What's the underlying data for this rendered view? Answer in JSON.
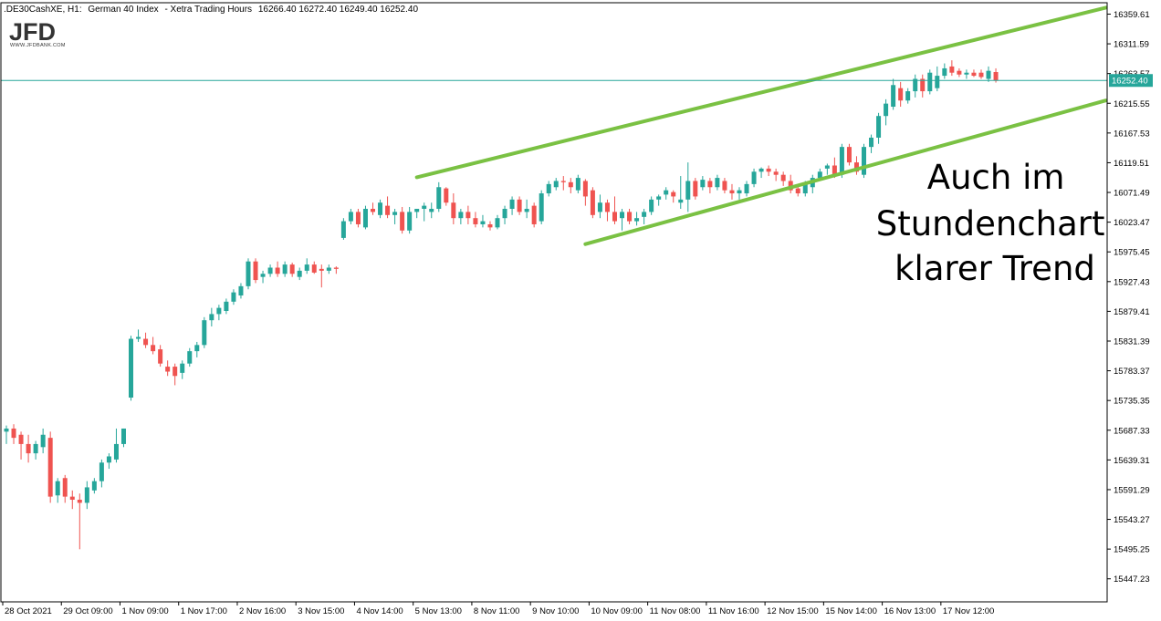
{
  "header": {
    "symbol": ".DE30CashXE, H1:",
    "description": "German 40 Index",
    "session": "- Xetra Trading Hours",
    "ohlc": "16266.40 16272.40 16249.40 16252.40"
  },
  "logo": {
    "mark": "JFD",
    "subtitle": "WWW.JFDBANK.COM"
  },
  "annotation": [
    "Auch im",
    "Stundenchart",
    "klarer Trend"
  ],
  "colors": {
    "bull": "#26a69a",
    "bear": "#ef5350",
    "trendline": "#7ac143",
    "price_line": "#26a69a",
    "axis": "#000000"
  },
  "chart_data": {
    "type": "candlestick",
    "title": "",
    "xlabel": "",
    "ylabel": "",
    "ylim": [
      15410,
      16378
    ],
    "y_ticks": [
      "16359.61",
      "16311.59",
      "16263.57",
      "16215.55",
      "16167.53",
      "16119.51",
      "16071.49",
      "16023.47",
      "15975.45",
      "15927.43",
      "15879.41",
      "15831.39",
      "15783.37",
      "15735.35",
      "15687.33",
      "15639.31",
      "15591.29",
      "15543.27",
      "15495.25",
      "15447.23"
    ],
    "x_ticks": [
      {
        "label": "28 Oct 2021",
        "bar": 0
      },
      {
        "label": "29 Oct 09:00",
        "bar": 8
      },
      {
        "label": "1 Nov 09:00",
        "bar": 16
      },
      {
        "label": "1 Nov 17:00",
        "bar": 24
      },
      {
        "label": "2 Nov 16:00",
        "bar": 32
      },
      {
        "label": "3 Nov 15:00",
        "bar": 40
      },
      {
        "label": "4 Nov 14:00",
        "bar": 48
      },
      {
        "label": "5 Nov 13:00",
        "bar": 56
      },
      {
        "label": "8 Nov 11:00",
        "bar": 64
      },
      {
        "label": "9 Nov 10:00",
        "bar": 72
      },
      {
        "label": "10 Nov 09:00",
        "bar": 80
      },
      {
        "label": "11 Nov 08:00",
        "bar": 88
      },
      {
        "label": "11 Nov 16:00",
        "bar": 96
      },
      {
        "label": "12 Nov 15:00",
        "bar": 104
      },
      {
        "label": "15 Nov 14:00",
        "bar": 112
      },
      {
        "label": "16 Nov 13:00",
        "bar": 120
      },
      {
        "label": "17 Nov 12:00",
        "bar": 128
      }
    ],
    "current_price": "16252.40",
    "candles": [
      {
        "o": 15685,
        "h": 15695,
        "l": 15665,
        "c": 15690
      },
      {
        "o": 15690,
        "h": 15697,
        "l": 15665,
        "c": 15675
      },
      {
        "o": 15680,
        "h": 15685,
        "l": 15640,
        "c": 15665
      },
      {
        "o": 15665,
        "h": 15680,
        "l": 15635,
        "c": 15650
      },
      {
        "o": 15650,
        "h": 15670,
        "l": 15640,
        "c": 15665
      },
      {
        "o": 15660,
        "h": 15690,
        "l": 15650,
        "c": 15680
      },
      {
        "o": 15675,
        "h": 15685,
        "l": 15570,
        "c": 15580
      },
      {
        "o": 15582,
        "h": 15610,
        "l": 15570,
        "c": 15605
      },
      {
        "o": 15610,
        "h": 15615,
        "l": 15570,
        "c": 15580
      },
      {
        "o": 15580,
        "h": 15590,
        "l": 15560,
        "c": 15575
      },
      {
        "o": 15575,
        "h": 15585,
        "l": 15495,
        "c": 15570
      },
      {
        "o": 15570,
        "h": 15605,
        "l": 15560,
        "c": 15595
      },
      {
        "o": 15590,
        "h": 15610,
        "l": 15585,
        "c": 15605
      },
      {
        "o": 15605,
        "h": 15640,
        "l": 15595,
        "c": 15635
      },
      {
        "o": 15635,
        "h": 15650,
        "l": 15625,
        "c": 15645
      },
      {
        "o": 15640,
        "h": 15690,
        "l": 15635,
        "c": 15665
      },
      {
        "o": 15665,
        "h": 15690,
        "l": 15660,
        "c": 15690
      },
      {
        "o": 15740,
        "h": 15840,
        "l": 15735,
        "c": 15835
      },
      {
        "o": 15835,
        "h": 15850,
        "l": 15830,
        "c": 15838
      },
      {
        "o": 15835,
        "h": 15845,
        "l": 15820,
        "c": 15825
      },
      {
        "o": 15825,
        "h": 15838,
        "l": 15810,
        "c": 15815
      },
      {
        "o": 15818,
        "h": 15825,
        "l": 15790,
        "c": 15795
      },
      {
        "o": 15790,
        "h": 15800,
        "l": 15775,
        "c": 15782
      },
      {
        "o": 15790,
        "h": 15795,
        "l": 15760,
        "c": 15775
      },
      {
        "o": 15780,
        "h": 15800,
        "l": 15770,
        "c": 15795
      },
      {
        "o": 15795,
        "h": 15820,
        "l": 15790,
        "c": 15815
      },
      {
        "o": 15815,
        "h": 15830,
        "l": 15805,
        "c": 15825
      },
      {
        "o": 15825,
        "h": 15870,
        "l": 15820,
        "c": 15865
      },
      {
        "o": 15865,
        "h": 15885,
        "l": 15855,
        "c": 15875
      },
      {
        "o": 15875,
        "h": 15890,
        "l": 15865,
        "c": 15885
      },
      {
        "o": 15880,
        "h": 15900,
        "l": 15875,
        "c": 15895
      },
      {
        "o": 15895,
        "h": 15915,
        "l": 15890,
        "c": 15910
      },
      {
        "o": 15905,
        "h": 15925,
        "l": 15900,
        "c": 15920
      },
      {
        "o": 15920,
        "h": 15965,
        "l": 15915,
        "c": 15960
      },
      {
        "o": 15960,
        "h": 15965,
        "l": 15925,
        "c": 15930
      },
      {
        "o": 15935,
        "h": 15945,
        "l": 15925,
        "c": 15940
      },
      {
        "o": 15940,
        "h": 15955,
        "l": 15935,
        "c": 15950
      },
      {
        "o": 15950,
        "h": 15960,
        "l": 15935,
        "c": 15940
      },
      {
        "o": 15940,
        "h": 15960,
        "l": 15935,
        "c": 15955
      },
      {
        "o": 15955,
        "h": 15958,
        "l": 15935,
        "c": 15940
      },
      {
        "o": 15935,
        "h": 15950,
        "l": 15930,
        "c": 15945
      },
      {
        "o": 15945,
        "h": 15965,
        "l": 15940,
        "c": 15955
      },
      {
        "o": 15955,
        "h": 15960,
        "l": 15940,
        "c": 15942
      },
      {
        "o": 15948,
        "h": 15955,
        "l": 15918,
        "c": 15945
      },
      {
        "o": 15945,
        "h": 15955,
        "l": 15940,
        "c": 15950
      },
      {
        "o": 15950,
        "h": 15952,
        "l": 15940,
        "c": 15948
      },
      {
        "o": 15998,
        "h": 16030,
        "l": 15995,
        "c": 16025
      },
      {
        "o": 16025,
        "h": 16045,
        "l": 16020,
        "c": 16040
      },
      {
        "o": 16040,
        "h": 16045,
        "l": 16015,
        "c": 16020
      },
      {
        "o": 16015,
        "h": 16050,
        "l": 16012,
        "c": 16045
      },
      {
        "o": 16045,
        "h": 16055,
        "l": 16035,
        "c": 16040
      },
      {
        "o": 16035,
        "h": 16060,
        "l": 16030,
        "c": 16055
      },
      {
        "o": 16050,
        "h": 16065,
        "l": 16030,
        "c": 16035
      },
      {
        "o": 16035,
        "h": 16045,
        "l": 16020,
        "c": 16040
      },
      {
        "o": 16040,
        "h": 16048,
        "l": 16005,
        "c": 16010
      },
      {
        "o": 16010,
        "h": 16048,
        "l": 16005,
        "c": 16040
      },
      {
        "o": 16040,
        "h": 16045,
        "l": 16030,
        "c": 16045
      },
      {
        "o": 16045,
        "h": 16055,
        "l": 16025,
        "c": 16050
      },
      {
        "o": 16040,
        "h": 16055,
        "l": 16030,
        "c": 16045
      },
      {
        "o": 16045,
        "h": 16088,
        "l": 16040,
        "c": 16080
      },
      {
        "o": 16078,
        "h": 16080,
        "l": 16050,
        "c": 16055
      },
      {
        "o": 16055,
        "h": 16070,
        "l": 16020,
        "c": 16030
      },
      {
        "o": 16030,
        "h": 16045,
        "l": 16020,
        "c": 16040
      },
      {
        "o": 16040,
        "h": 16050,
        "l": 16020,
        "c": 16030
      },
      {
        "o": 16030,
        "h": 16040,
        "l": 16015,
        "c": 16020
      },
      {
        "o": 16020,
        "h": 16035,
        "l": 16015,
        "c": 16025
      },
      {
        "o": 16020,
        "h": 16025,
        "l": 16010,
        "c": 16015
      },
      {
        "o": 16015,
        "h": 16035,
        "l": 16012,
        "c": 16030
      },
      {
        "o": 16030,
        "h": 16050,
        "l": 16020,
        "c": 16045
      },
      {
        "o": 16045,
        "h": 16065,
        "l": 16035,
        "c": 16060
      },
      {
        "o": 16060,
        "h": 16065,
        "l": 16035,
        "c": 16040
      },
      {
        "o": 16040,
        "h": 16060,
        "l": 16030,
        "c": 16045
      },
      {
        "o": 16050,
        "h": 16055,
        "l": 16015,
        "c": 16020
      },
      {
        "o": 16025,
        "h": 16075,
        "l": 16020,
        "c": 16070
      },
      {
        "o": 16070,
        "h": 16090,
        "l": 16065,
        "c": 16085
      },
      {
        "o": 16080,
        "h": 16095,
        "l": 16075,
        "c": 16090
      },
      {
        "o": 16090,
        "h": 16098,
        "l": 16075,
        "c": 16088
      },
      {
        "o": 16088,
        "h": 16095,
        "l": 16070,
        "c": 16080
      },
      {
        "o": 16075,
        "h": 16100,
        "l": 16070,
        "c": 16095
      },
      {
        "o": 16090,
        "h": 16093,
        "l": 16050,
        "c": 16065
      },
      {
        "o": 16075,
        "h": 16080,
        "l": 16030,
        "c": 16035
      },
      {
        "o": 16040,
        "h": 16068,
        "l": 16030,
        "c": 16055
      },
      {
        "o": 16055,
        "h": 16060,
        "l": 16025,
        "c": 16040
      },
      {
        "o": 16040,
        "h": 16065,
        "l": 16020,
        "c": 16025
      },
      {
        "o": 16030,
        "h": 16045,
        "l": 16010,
        "c": 16040
      },
      {
        "o": 16040,
        "h": 16045,
        "l": 16020,
        "c": 16025
      },
      {
        "o": 16025,
        "h": 16040,
        "l": 16018,
        "c": 16030
      },
      {
        "o": 16032,
        "h": 16045,
        "l": 16020,
        "c": 16040
      },
      {
        "o": 16040,
        "h": 16065,
        "l": 16035,
        "c": 16060
      },
      {
        "o": 16060,
        "h": 16068,
        "l": 16050,
        "c": 16065
      },
      {
        "o": 16068,
        "h": 16080,
        "l": 16060,
        "c": 16075
      },
      {
        "o": 16072,
        "h": 16075,
        "l": 16055,
        "c": 16065
      },
      {
        "o": 16055,
        "h": 16098,
        "l": 16045,
        "c": 16060
      },
      {
        "o": 16060,
        "h": 16120,
        "l": 16040,
        "c": 16090
      },
      {
        "o": 16090,
        "h": 16095,
        "l": 16060,
        "c": 16065
      },
      {
        "o": 16080,
        "h": 16098,
        "l": 16075,
        "c": 16092
      },
      {
        "o": 16090,
        "h": 16095,
        "l": 16070,
        "c": 16080
      },
      {
        "o": 16080,
        "h": 16100,
        "l": 16075,
        "c": 16095
      },
      {
        "o": 16090,
        "h": 16095,
        "l": 16070,
        "c": 16075
      },
      {
        "o": 16075,
        "h": 16085,
        "l": 16060,
        "c": 16070
      },
      {
        "o": 16070,
        "h": 16080,
        "l": 16060,
        "c": 16075
      },
      {
        "o": 16070,
        "h": 16090,
        "l": 16065,
        "c": 16085
      },
      {
        "o": 16085,
        "h": 16110,
        "l": 16080,
        "c": 16105
      },
      {
        "o": 16105,
        "h": 16112,
        "l": 16095,
        "c": 16110
      },
      {
        "o": 16110,
        "h": 16115,
        "l": 16098,
        "c": 16105
      },
      {
        "o": 16105,
        "h": 16110,
        "l": 16090,
        "c": 16100
      },
      {
        "o": 16100,
        "h": 16105,
        "l": 16082,
        "c": 16090
      },
      {
        "o": 16090,
        "h": 16100,
        "l": 16070,
        "c": 16075
      },
      {
        "o": 16078,
        "h": 16085,
        "l": 16065,
        "c": 16070
      },
      {
        "o": 16070,
        "h": 16090,
        "l": 16065,
        "c": 16085
      },
      {
        "o": 16080,
        "h": 16100,
        "l": 16070,
        "c": 16095
      },
      {
        "o": 16095,
        "h": 16110,
        "l": 16090,
        "c": 16105
      },
      {
        "o": 16110,
        "h": 16118,
        "l": 16100,
        "c": 16115
      },
      {
        "o": 16115,
        "h": 16128,
        "l": 16095,
        "c": 16100
      },
      {
        "o": 16100,
        "h": 16150,
        "l": 16095,
        "c": 16145
      },
      {
        "o": 16145,
        "h": 16150,
        "l": 16115,
        "c": 16120
      },
      {
        "o": 16120,
        "h": 16130,
        "l": 16100,
        "c": 16105
      },
      {
        "o": 16100,
        "h": 16150,
        "l": 16095,
        "c": 16145
      },
      {
        "o": 16145,
        "h": 16165,
        "l": 16135,
        "c": 16160
      },
      {
        "o": 16160,
        "h": 16200,
        "l": 16150,
        "c": 16195
      },
      {
        "o": 16195,
        "h": 16222,
        "l": 16180,
        "c": 16215
      },
      {
        "o": 16210,
        "h": 16255,
        "l": 16205,
        "c": 16245
      },
      {
        "o": 16240,
        "h": 16250,
        "l": 16210,
        "c": 16220
      },
      {
        "o": 16220,
        "h": 16240,
        "l": 16215,
        "c": 16235
      },
      {
        "o": 16235,
        "h": 16262,
        "l": 16225,
        "c": 16255
      },
      {
        "o": 16255,
        "h": 16262,
        "l": 16225,
        "c": 16235
      },
      {
        "o": 16235,
        "h": 16270,
        "l": 16230,
        "c": 16265
      },
      {
        "o": 16240,
        "h": 16275,
        "l": 16235,
        "c": 16260
      },
      {
        "o": 16260,
        "h": 16280,
        "l": 16255,
        "c": 16272
      },
      {
        "o": 16275,
        "h": 16285,
        "l": 16260,
        "c": 16265
      },
      {
        "o": 16268,
        "h": 16272,
        "l": 16258,
        "c": 16262
      },
      {
        "o": 16262,
        "h": 16270,
        "l": 16255,
        "c": 16265
      },
      {
        "o": 16265,
        "h": 16270,
        "l": 16258,
        "c": 16260
      },
      {
        "o": 16265,
        "h": 16270,
        "l": 16255,
        "c": 16258
      },
      {
        "o": 16255,
        "h": 16275,
        "l": 16250,
        "c": 16268
      },
      {
        "o": 16266,
        "h": 16272,
        "l": 16249,
        "c": 16252
      }
    ],
    "trendlines": [
      {
        "name": "upper-trendline",
        "bar1": 56,
        "price1": 16096,
        "bar2": 150,
        "price2": 16370
      },
      {
        "name": "lower-trendline",
        "bar1": 79,
        "price1": 15988,
        "bar2": 150,
        "price2": 16220
      }
    ]
  }
}
